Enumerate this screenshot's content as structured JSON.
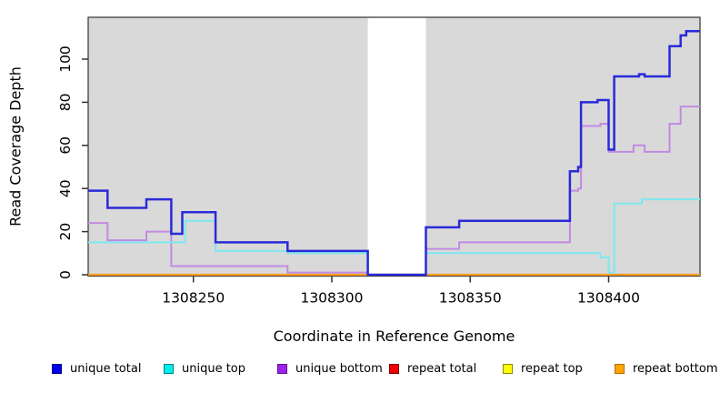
{
  "figure": {
    "x_axis_title": "Coordinate in Reference Genome",
    "y_axis_title": "Read Coverage Depth"
  },
  "chart_data": {
    "type": "line",
    "subtype": "step",
    "title": "",
    "xlabel": "Coordinate in Reference Genome",
    "ylabel": "Read Coverage Depth",
    "xlim": [
      1308212,
      1308433
    ],
    "ylim": [
      0,
      119
    ],
    "x_ticks": [
      1308250,
      1308300,
      1308350,
      1308400
    ],
    "y_ticks": [
      0,
      20,
      40,
      60,
      80,
      100
    ],
    "grid": false,
    "legend_position": "bottom",
    "plot_background": "#d9d9d9",
    "page_background": "#ffffff",
    "uncovered_white_band_x": [
      1308313,
      1308334
    ],
    "series": [
      {
        "name": "repeat total",
        "line_color": "#ee0000",
        "legend_fill": "#ee0000",
        "legend_border": "#7a0000",
        "line_width": 2,
        "steps": [
          [
            1308212,
            0
          ]
        ]
      },
      {
        "name": "repeat top",
        "line_color": "#ffff00",
        "legend_fill": "#ffff00",
        "legend_border": "#8b8b00",
        "line_width": 2,
        "steps": [
          [
            1308212,
            0
          ]
        ]
      },
      {
        "name": "repeat bottom",
        "line_color": "#ff9d20",
        "legend_fill": "#ffa500",
        "legend_border": "#b36b00",
        "line_width": 2.2,
        "steps": [
          [
            1308212,
            0
          ]
        ]
      },
      {
        "name": "unique bottom",
        "line_color": "#c28ae2",
        "legend_fill": "#a020f0",
        "legend_border": "#5e1090",
        "line_width": 2,
        "steps": [
          [
            1308212,
            24
          ],
          [
            1308219,
            16
          ],
          [
            1308233,
            20
          ],
          [
            1308242,
            4
          ],
          [
            1308284,
            1
          ],
          [
            1308313,
            0
          ],
          [
            1308334,
            12
          ],
          [
            1308346,
            15
          ],
          [
            1308386,
            39
          ],
          [
            1308389,
            40
          ],
          [
            1308390,
            69
          ],
          [
            1308397,
            70
          ],
          [
            1308400,
            57
          ],
          [
            1308409,
            60
          ],
          [
            1308413,
            57
          ],
          [
            1308422,
            70
          ],
          [
            1308426,
            78
          ]
        ]
      },
      {
        "name": "unique top",
        "line_color": "#7ce8ee",
        "legend_fill": "#00eeee",
        "legend_border": "#00807f",
        "line_width": 2,
        "steps": [
          [
            1308212,
            15
          ],
          [
            1308247,
            25
          ],
          [
            1308258,
            11
          ],
          [
            1308284,
            10
          ],
          [
            1308313,
            0
          ],
          [
            1308334,
            10
          ],
          [
            1308397,
            8
          ],
          [
            1308400,
            1
          ],
          [
            1308402,
            33
          ],
          [
            1308412,
            35
          ]
        ]
      },
      {
        "name": "unique total",
        "line_color": "#2a2ad8",
        "legend_fill": "#0000ee",
        "legend_border": "#000080",
        "line_width": 2.5,
        "steps": [
          [
            1308212,
            39
          ],
          [
            1308219,
            31
          ],
          [
            1308233,
            35
          ],
          [
            1308242,
            19
          ],
          [
            1308246,
            29
          ],
          [
            1308258,
            15
          ],
          [
            1308284,
            11
          ],
          [
            1308313,
            0
          ],
          [
            1308334,
            22
          ],
          [
            1308346,
            25
          ],
          [
            1308386,
            48
          ],
          [
            1308389,
            50
          ],
          [
            1308390,
            80
          ],
          [
            1308396,
            81
          ],
          [
            1308400,
            58
          ],
          [
            1308402,
            92
          ],
          [
            1308411,
            93
          ],
          [
            1308413,
            92
          ],
          [
            1308422,
            106
          ],
          [
            1308426,
            111
          ],
          [
            1308428,
            113
          ]
        ]
      }
    ]
  },
  "legend": {
    "items": [
      {
        "label": "unique total",
        "fill": "#0000ee",
        "border": "#000080"
      },
      {
        "label": "unique top",
        "fill": "#00eeee",
        "border": "#00807f"
      },
      {
        "label": "unique bottom",
        "fill": "#a020f0",
        "border": "#5e1090"
      },
      {
        "label": "repeat total",
        "fill": "#ee0000",
        "border": "#7a0000"
      },
      {
        "label": "repeat top",
        "fill": "#ffff00",
        "border": "#8b8b00"
      },
      {
        "label": "repeat bottom",
        "fill": "#ffa500",
        "border": "#b36b00"
      }
    ]
  }
}
